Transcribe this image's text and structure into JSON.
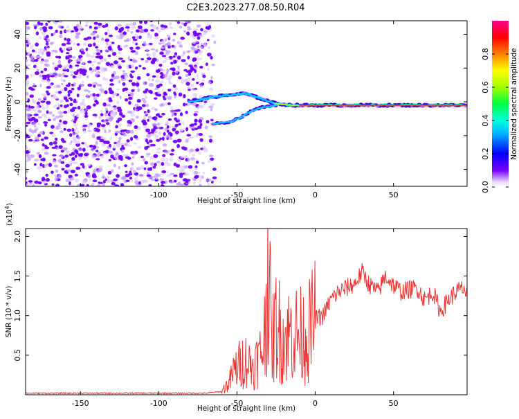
{
  "title": "C2E3.2023.277.08.50.R04",
  "colors": {
    "scatter": "#7a00ff",
    "snr_line": "#ee3333",
    "frame": "#000000"
  },
  "chart_data": [
    {
      "type": "heatmap",
      "xlabel": "Height of straight line (km)",
      "ylabel": "Frequency (Hz)",
      "xlim": [
        -185,
        97
      ],
      "ylim": [
        -50,
        48
      ],
      "x_ticks": [
        -150,
        -100,
        -50,
        0,
        50
      ],
      "y_ticks": [
        40,
        20,
        0,
        -20,
        -40
      ],
      "x_tick_labels": [
        "-150",
        "-100",
        "-50",
        "0",
        "50"
      ],
      "y_tick_labels": [
        "40",
        "20",
        "0",
        "-20",
        "-40"
      ],
      "noise_region_x": [
        -185,
        -68
      ],
      "upper_branch": [
        [
          -80,
          0
        ],
        [
          -65,
          3
        ],
        [
          -55,
          4
        ],
        [
          -45,
          5
        ],
        [
          -35,
          2
        ],
        [
          -25,
          -1
        ],
        [
          -15,
          -2
        ],
        [
          0,
          -2
        ],
        [
          50,
          -2
        ],
        [
          97,
          -2
        ]
      ],
      "lower_branch": [
        [
          -65,
          -13
        ],
        [
          -55,
          -12
        ],
        [
          -47,
          -9
        ],
        [
          -40,
          -5
        ],
        [
          -33,
          -3
        ],
        [
          -25,
          -2
        ]
      ],
      "colorbar": {
        "label": "Normalized spectral amplitude",
        "range": [
          0,
          1
        ],
        "ticks": [
          0.0,
          0.2,
          0.4,
          0.6,
          0.8
        ],
        "tick_labels": [
          "0.0",
          "0.2",
          "0.4",
          "0.6",
          "0.8"
        ],
        "colormap": "rainbow"
      },
      "grid": false
    },
    {
      "type": "line",
      "xlabel": "Height of straight line (km)",
      "ylabel": "SNR (10 * v/v)",
      "y_multiplier_label": "(x10",
      "y_multiplier_exp": "4",
      "xlim": [
        -185,
        97
      ],
      "ylim": [
        0,
        2.1
      ],
      "x_ticks": [
        -150,
        -100,
        -50,
        0,
        50
      ],
      "y_ticks": [
        0.5,
        1.0,
        1.5,
        2.0
      ],
      "x_tick_labels": [
        "-150",
        "-100",
        "-50",
        "0",
        "50"
      ],
      "y_tick_labels": [
        "0.5",
        "1.0",
        "1.5",
        "2.0"
      ],
      "series": [
        {
          "x": [
            -185,
            -150,
            -100,
            -70,
            -60,
            -55,
            -52,
            -50,
            -45,
            -40,
            -35,
            -32,
            -30,
            -28,
            -25,
            -20,
            -15,
            -10,
            -5,
            0,
            5,
            10,
            15,
            20,
            25,
            30,
            35,
            40,
            45,
            50,
            55,
            60,
            65,
            70,
            75,
            80,
            85,
            90,
            95,
            97
          ],
          "y": [
            0.02,
            0.02,
            0.02,
            0.02,
            0.04,
            0.15,
            0.3,
            0.35,
            0.45,
            0.35,
            0.5,
            0.8,
            2.05,
            0.6,
            0.9,
            0.7,
            0.8,
            0.75,
            0.75,
            0.95,
            1.0,
            1.2,
            1.3,
            1.35,
            1.4,
            1.55,
            1.38,
            1.3,
            1.5,
            1.38,
            1.3,
            1.33,
            1.35,
            1.2,
            1.3,
            1.05,
            1.2,
            1.3,
            1.35,
            1.22
          ]
        }
      ],
      "grid": false
    }
  ]
}
